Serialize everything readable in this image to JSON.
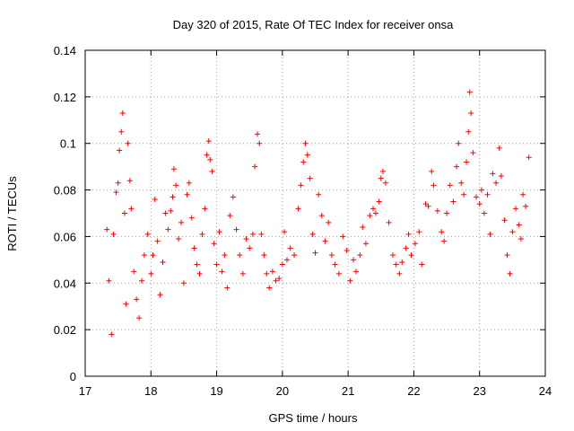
{
  "chart_data": {
    "type": "scatter",
    "title": "Day 320 of 2015, Rate Of TEC Index for receiver onsa",
    "xlabel": "GPS time / hours",
    "ylabel": "ROTI / TECUs",
    "xlim": [
      17,
      24
    ],
    "ylim": [
      0,
      0.14
    ],
    "x_ticks": [
      "17",
      "18",
      "19",
      "20",
      "21",
      "22",
      "23",
      "24"
    ],
    "y_ticks": [
      "0",
      "0.02",
      "0.04",
      "0.06",
      "0.08",
      "0.1",
      "0.12",
      "0.14"
    ],
    "grid": true,
    "marker": "+",
    "color": "#ff0000",
    "series": [
      {
        "values": [
          [
            17.33,
            0.063
          ],
          [
            17.36,
            0.041
          ],
          [
            17.4,
            0.018
          ],
          [
            17.43,
            0.061
          ],
          [
            17.47,
            0.079
          ],
          [
            17.5,
            0.083
          ],
          [
            17.52,
            0.097
          ],
          [
            17.55,
            0.105
          ],
          [
            17.57,
            0.113
          ],
          [
            17.6,
            0.07
          ],
          [
            17.62,
            0.031
          ],
          [
            17.65,
            0.1
          ],
          [
            17.68,
            0.084
          ],
          [
            17.7,
            0.072
          ],
          [
            17.74,
            0.045
          ],
          [
            17.78,
            0.033
          ],
          [
            17.82,
            0.025
          ],
          [
            17.86,
            0.041
          ],
          [
            17.9,
            0.052
          ],
          [
            17.95,
            0.061
          ],
          [
            18.0,
            0.044
          ],
          [
            18.03,
            0.052
          ],
          [
            18.06,
            0.076
          ],
          [
            18.1,
            0.058
          ],
          [
            18.14,
            0.035
          ],
          [
            18.18,
            0.049
          ],
          [
            18.22,
            0.07
          ],
          [
            18.26,
            0.063
          ],
          [
            18.3,
            0.071
          ],
          [
            18.33,
            0.077
          ],
          [
            18.35,
            0.089
          ],
          [
            18.38,
            0.082
          ],
          [
            18.42,
            0.059
          ],
          [
            18.46,
            0.066
          ],
          [
            18.5,
            0.04
          ],
          [
            18.55,
            0.078
          ],
          [
            18.58,
            0.083
          ],
          [
            18.62,
            0.068
          ],
          [
            18.66,
            0.055
          ],
          [
            18.7,
            0.048
          ],
          [
            18.74,
            0.044
          ],
          [
            18.78,
            0.061
          ],
          [
            18.82,
            0.072
          ],
          [
            18.85,
            0.095
          ],
          [
            18.88,
            0.101
          ],
          [
            18.9,
            0.093
          ],
          [
            18.93,
            0.088
          ],
          [
            18.96,
            0.057
          ],
          [
            19.0,
            0.048
          ],
          [
            19.04,
            0.062
          ],
          [
            19.08,
            0.045
          ],
          [
            19.12,
            0.052
          ],
          [
            19.16,
            0.038
          ],
          [
            19.2,
            0.069
          ],
          [
            19.25,
            0.077
          ],
          [
            19.3,
            0.063
          ],
          [
            19.35,
            0.052
          ],
          [
            19.4,
            0.044
          ],
          [
            19.45,
            0.059
          ],
          [
            19.5,
            0.055
          ],
          [
            19.55,
            0.061
          ],
          [
            19.58,
            0.09
          ],
          [
            19.62,
            0.104
          ],
          [
            19.65,
            0.1
          ],
          [
            19.68,
            0.061
          ],
          [
            19.72,
            0.052
          ],
          [
            19.76,
            0.044
          ],
          [
            19.8,
            0.038
          ],
          [
            19.85,
            0.045
          ],
          [
            19.9,
            0.041
          ],
          [
            19.95,
            0.042
          ],
          [
            20.0,
            0.048
          ],
          [
            20.03,
            0.062
          ],
          [
            20.07,
            0.05
          ],
          [
            20.12,
            0.055
          ],
          [
            20.18,
            0.052
          ],
          [
            20.24,
            0.072
          ],
          [
            20.28,
            0.082
          ],
          [
            20.32,
            0.092
          ],
          [
            20.35,
            0.1
          ],
          [
            20.38,
            0.095
          ],
          [
            20.42,
            0.085
          ],
          [
            20.46,
            0.061
          ],
          [
            20.5,
            0.053
          ],
          [
            20.55,
            0.078
          ],
          [
            20.6,
            0.069
          ],
          [
            20.65,
            0.058
          ],
          [
            20.7,
            0.066
          ],
          [
            20.75,
            0.052
          ],
          [
            20.8,
            0.048
          ],
          [
            20.86,
            0.044
          ],
          [
            20.92,
            0.06
          ],
          [
            20.98,
            0.054
          ],
          [
            21.03,
            0.041
          ],
          [
            21.08,
            0.05
          ],
          [
            21.12,
            0.045
          ],
          [
            21.18,
            0.052
          ],
          [
            21.22,
            0.064
          ],
          [
            21.27,
            0.057
          ],
          [
            21.33,
            0.069
          ],
          [
            21.38,
            0.072
          ],
          [
            21.42,
            0.07
          ],
          [
            21.47,
            0.075
          ],
          [
            21.5,
            0.085
          ],
          [
            21.53,
            0.088
          ],
          [
            21.57,
            0.083
          ],
          [
            21.62,
            0.066
          ],
          [
            21.68,
            0.052
          ],
          [
            21.73,
            0.048
          ],
          [
            21.78,
            0.044
          ],
          [
            21.82,
            0.049
          ],
          [
            21.88,
            0.055
          ],
          [
            21.92,
            0.061
          ],
          [
            21.96,
            0.052
          ],
          [
            22.02,
            0.057
          ],
          [
            22.08,
            0.062
          ],
          [
            22.12,
            0.048
          ],
          [
            22.18,
            0.074
          ],
          [
            22.22,
            0.073
          ],
          [
            22.27,
            0.088
          ],
          [
            22.3,
            0.082
          ],
          [
            22.36,
            0.071
          ],
          [
            22.42,
            0.062
          ],
          [
            22.46,
            0.058
          ],
          [
            22.5,
            0.07
          ],
          [
            22.55,
            0.082
          ],
          [
            22.6,
            0.075
          ],
          [
            22.65,
            0.09
          ],
          [
            22.68,
            0.1
          ],
          [
            22.72,
            0.083
          ],
          [
            22.76,
            0.078
          ],
          [
            22.8,
            0.092
          ],
          [
            22.83,
            0.105
          ],
          [
            22.85,
            0.122
          ],
          [
            22.87,
            0.113
          ],
          [
            22.9,
            0.096
          ],
          [
            22.95,
            0.077
          ],
          [
            23.0,
            0.074
          ],
          [
            23.03,
            0.08
          ],
          [
            23.07,
            0.07
          ],
          [
            23.12,
            0.078
          ],
          [
            23.16,
            0.061
          ],
          [
            23.2,
            0.087
          ],
          [
            23.25,
            0.083
          ],
          [
            23.3,
            0.098
          ],
          [
            23.33,
            0.086
          ],
          [
            23.38,
            0.067
          ],
          [
            23.42,
            0.052
          ],
          [
            23.46,
            0.044
          ],
          [
            23.5,
            0.062
          ],
          [
            23.55,
            0.072
          ],
          [
            23.6,
            0.065
          ],
          [
            23.63,
            0.059
          ],
          [
            23.66,
            0.078
          ],
          [
            23.7,
            0.073
          ],
          [
            23.75,
            0.094
          ]
        ]
      }
    ]
  }
}
